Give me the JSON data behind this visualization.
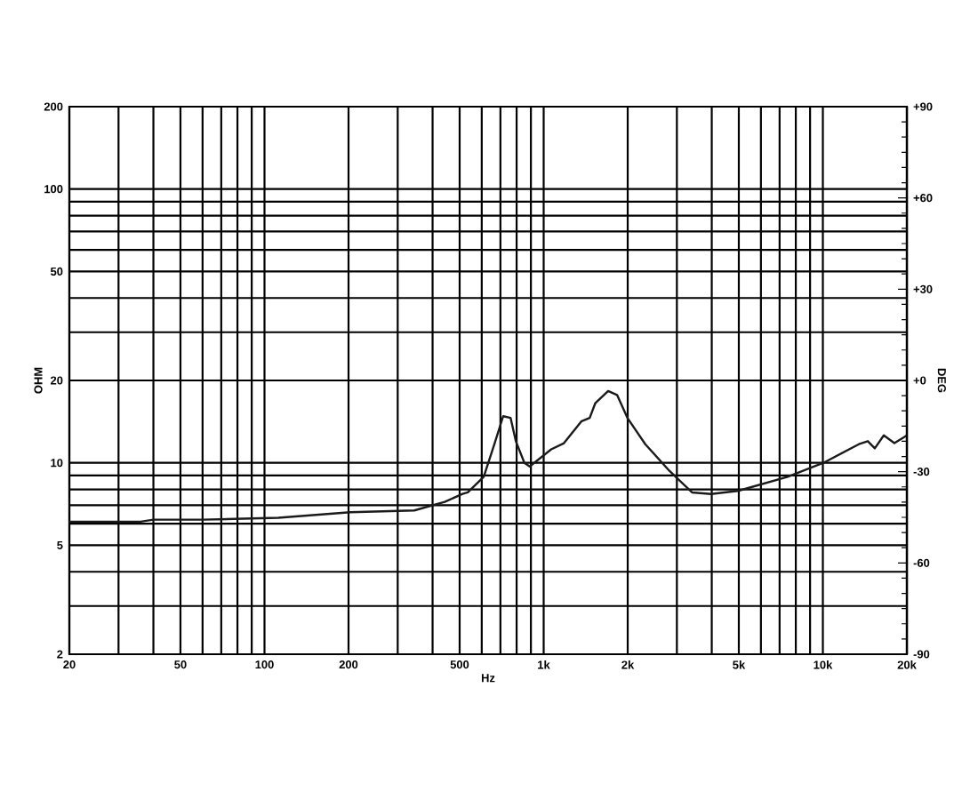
{
  "chart_data": {
    "type": "line",
    "xlabel": "Hz",
    "ylabel": "OHM",
    "y2label": "DEG",
    "log": "xy",
    "grid": true,
    "xlim": [
      20,
      20000
    ],
    "ylim": [
      2,
      200
    ],
    "y2lim": [
      -90,
      90
    ],
    "xticks": [
      20,
      50,
      100,
      200,
      500,
      {
        "value": 1000,
        "label": "1k"
      },
      {
        "value": 2000,
        "label": "2k"
      },
      {
        "value": 5000,
        "label": "5k"
      },
      {
        "value": 10000,
        "label": "10k"
      },
      {
        "value": 20000,
        "label": "20k"
      }
    ],
    "yticks": [
      2,
      5,
      10,
      20,
      50,
      100,
      200
    ],
    "y2ticks": [
      -90,
      -60,
      -30,
      {
        "value": 0,
        "label": "+0"
      },
      {
        "value": 30,
        "label": "+30"
      },
      {
        "value": 60,
        "label": "+60"
      },
      {
        "value": 90,
        "label": "+90"
      }
    ],
    "series": [
      {
        "color": "#1a1a1a",
        "x": [
          20,
          36,
          40,
          60,
          112,
          203,
          344,
          442,
          512,
          535,
          610,
          666,
          716,
          761,
          795,
          853,
          891,
          1064,
          1182,
          1367,
          1462,
          1530,
          1702,
          1832,
          1995,
          2312,
          2821,
          3399,
          3975,
          4966,
          7485,
          10046,
          13460,
          14490,
          15350,
          16530,
          18040,
          20000
        ],
        "values": [
          6.1,
          6.1,
          6.2,
          6.2,
          6.3,
          6.6,
          6.7,
          7.2,
          7.7,
          7.8,
          8.9,
          11.7,
          14.8,
          14.6,
          12.0,
          10.0,
          9.7,
          11.2,
          11.8,
          14.2,
          14.6,
          16.5,
          18.3,
          17.7,
          14.6,
          11.7,
          9.35,
          7.8,
          7.7,
          7.9,
          8.9,
          10.0,
          11.7,
          12.0,
          11.3,
          12.6,
          11.8,
          12.6
        ]
      }
    ]
  }
}
